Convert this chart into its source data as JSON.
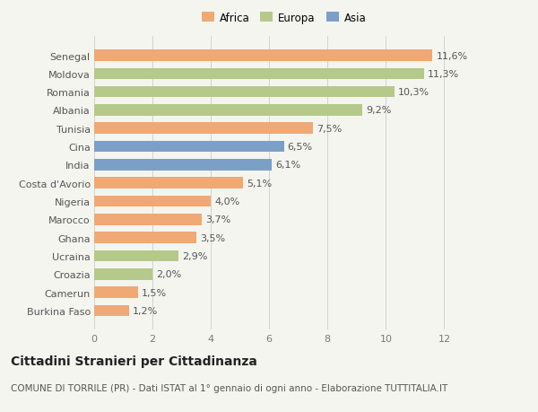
{
  "countries": [
    "Burkina Faso",
    "Camerun",
    "Croazia",
    "Ucraina",
    "Ghana",
    "Marocco",
    "Nigeria",
    "Costa d'Avorio",
    "India",
    "Cina",
    "Tunisia",
    "Albania",
    "Romania",
    "Moldova",
    "Senegal"
  ],
  "values": [
    1.2,
    1.5,
    2.0,
    2.9,
    3.5,
    3.7,
    4.0,
    5.1,
    6.1,
    6.5,
    7.5,
    9.2,
    10.3,
    11.3,
    11.6
  ],
  "labels": [
    "1,2%",
    "1,5%",
    "2,0%",
    "2,9%",
    "3,5%",
    "3,7%",
    "4,0%",
    "5,1%",
    "6,1%",
    "6,5%",
    "7,5%",
    "9,2%",
    "10,3%",
    "11,3%",
    "11,6%"
  ],
  "colors": [
    "#f0a875",
    "#f0a875",
    "#b5c98a",
    "#b5c98a",
    "#f0a875",
    "#f0a875",
    "#f0a875",
    "#f0a875",
    "#7b9fc7",
    "#7b9fc7",
    "#f0a875",
    "#b5c98a",
    "#b5c98a",
    "#b5c98a",
    "#f0a875"
  ],
  "legend": [
    {
      "label": "Africa",
      "color": "#f0a875"
    },
    {
      "label": "Europa",
      "color": "#b5c98a"
    },
    {
      "label": "Asia",
      "color": "#7b9fc7"
    }
  ],
  "xlim": [
    0,
    13
  ],
  "xticks": [
    0,
    2,
    4,
    6,
    8,
    10,
    12
  ],
  "title": "Cittadini Stranieri per Cittadinanza",
  "subtitle": "COMUNE DI TORRILE (PR) - Dati ISTAT al 1° gennaio di ogni anno - Elaborazione TUTTITALIA.IT",
  "bg_color": "#f5f5f0",
  "bar_height": 0.62,
  "label_fontsize": 8,
  "tick_fontsize": 8,
  "ytick_fontsize": 8,
  "title_fontsize": 10,
  "subtitle_fontsize": 7.5,
  "legend_fontsize": 8.5
}
